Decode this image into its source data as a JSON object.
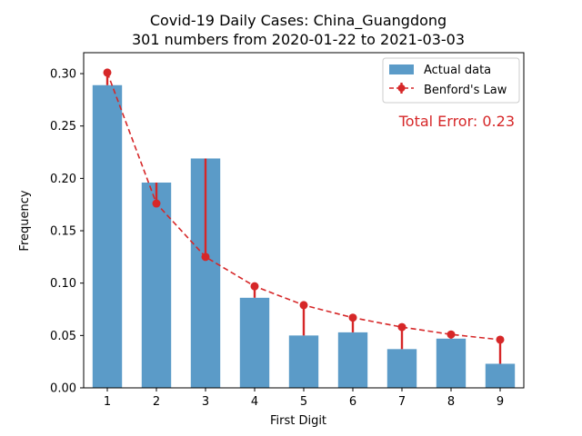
{
  "chart_data": {
    "type": "bar",
    "title": "Covid-19 Daily Cases: China_Guangdong",
    "subtitle": "301 numbers from 2020-01-22 to 2021-03-03",
    "xlabel": "First Digit",
    "ylabel": "Frequency",
    "categories": [
      "1",
      "2",
      "3",
      "4",
      "5",
      "6",
      "7",
      "8",
      "9"
    ],
    "ylim": [
      0,
      0.32
    ],
    "yticks": [
      "0.00",
      "0.05",
      "0.10",
      "0.15",
      "0.20",
      "0.25",
      "0.30"
    ],
    "series": [
      {
        "name": "Actual data",
        "kind": "bar",
        "color": "#5b9bc8",
        "values": [
          0.289,
          0.196,
          0.219,
          0.086,
          0.05,
          0.053,
          0.037,
          0.047,
          0.023
        ]
      },
      {
        "name": "Benford's Law",
        "kind": "line-with-error-bars",
        "color": "#d62728",
        "values": [
          0.301,
          0.176,
          0.125,
          0.097,
          0.079,
          0.067,
          0.058,
          0.051,
          0.046
        ]
      }
    ],
    "annotation": "Total Error: 0.23",
    "annotation_color": "#d62728",
    "legend_position": "top-right",
    "grid": false
  }
}
